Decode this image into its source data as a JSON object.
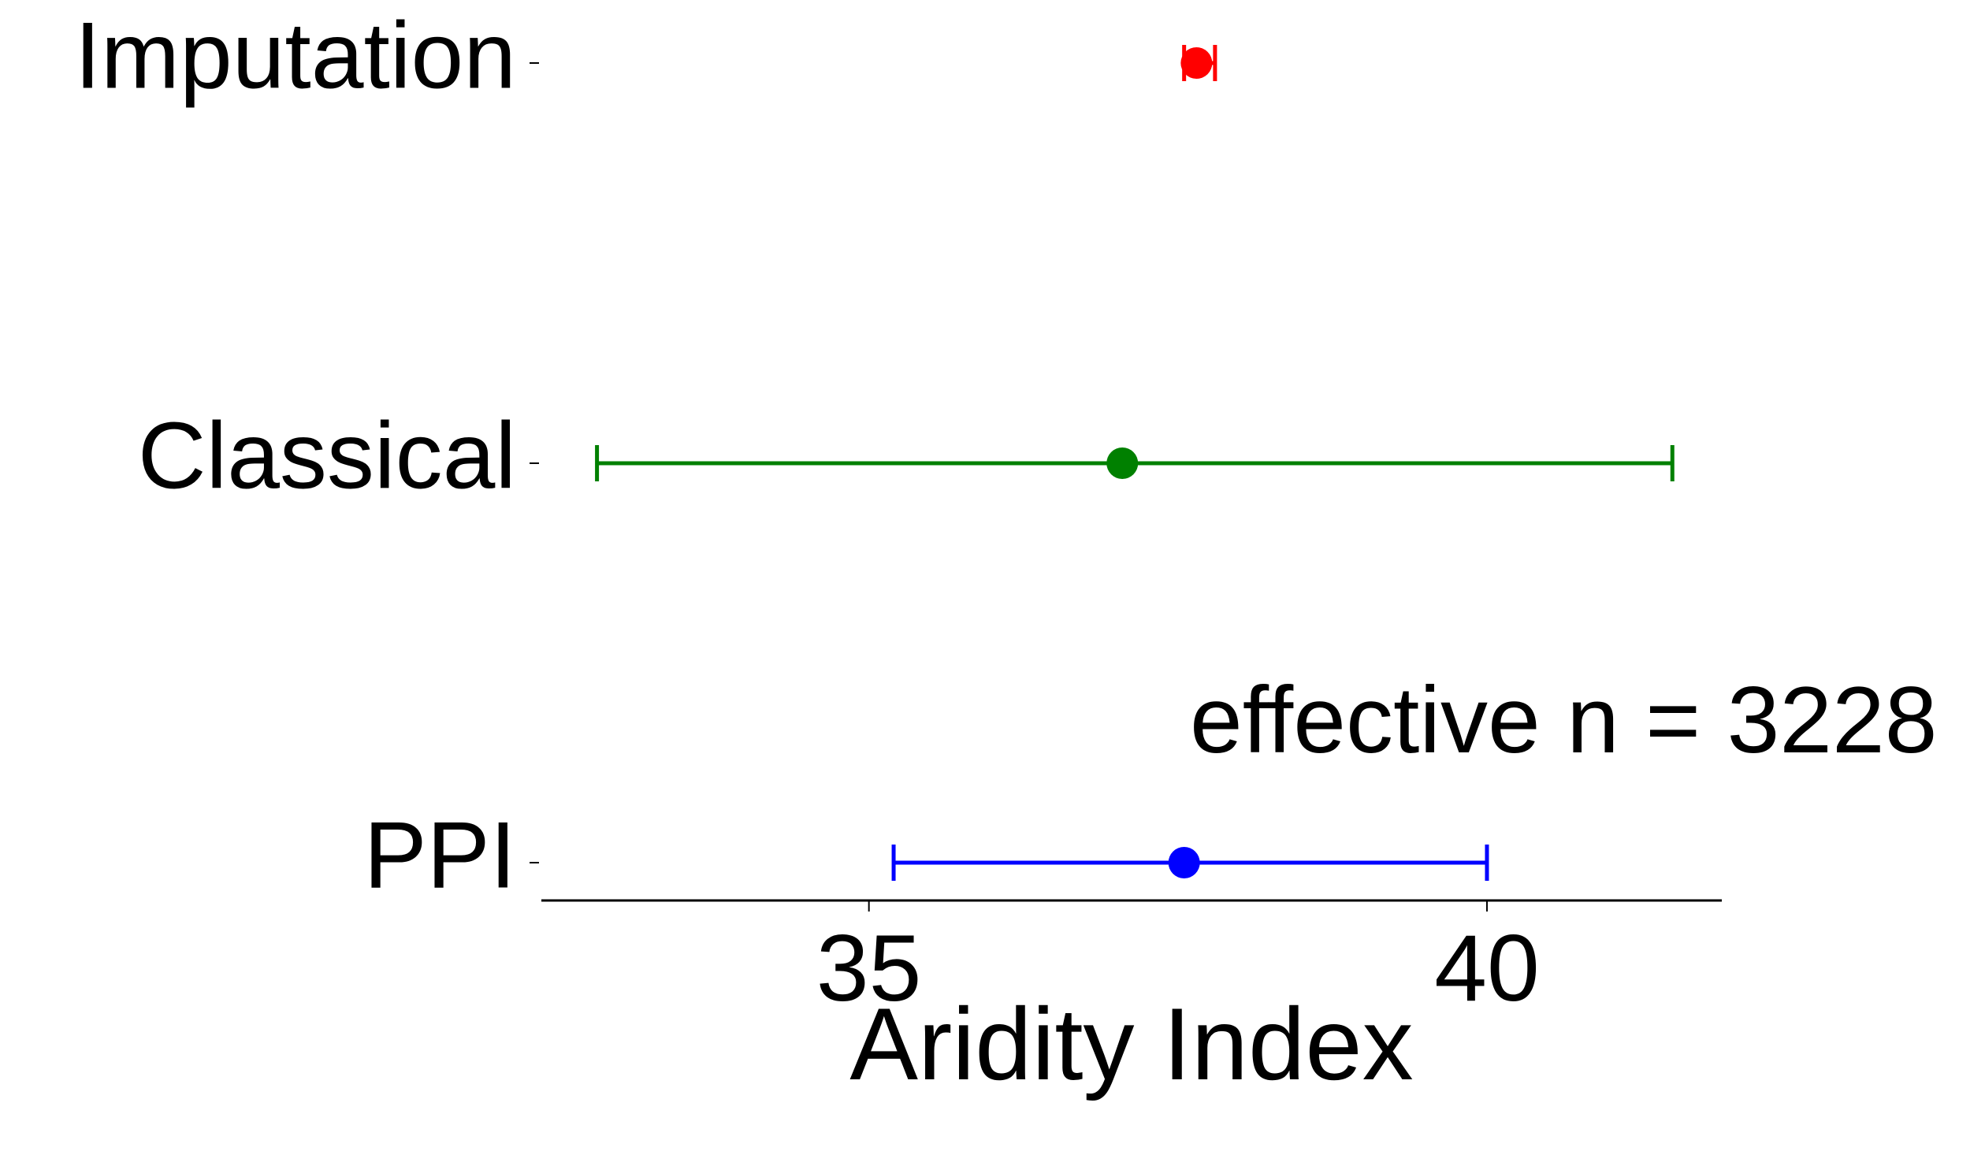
{
  "chart_data": {
    "type": "scatter",
    "subtype": "interval-plot",
    "title": "",
    "xlabel": "Aridity Index",
    "ylabel": "",
    "xlim": [
      32.35,
      41.9
    ],
    "xticks": [
      35,
      40
    ],
    "xtick_labels": [
      "35",
      "40"
    ],
    "categories": [
      "Imputation",
      "Classical",
      "PPI"
    ],
    "series": [
      {
        "name": "Imputation",
        "estimate": 37.65,
        "lower": 37.55,
        "upper": 37.8,
        "color": "#ff0000"
      },
      {
        "name": "Classical",
        "estimate": 37.05,
        "lower": 32.8,
        "upper": 41.5,
        "color": "#008000"
      },
      {
        "name": "PPI",
        "estimate": 37.55,
        "lower": 35.2,
        "upper": 40.0,
        "color": "#0000ff"
      }
    ],
    "annotations": [
      {
        "text": "effective n = 3228",
        "category": "PPI"
      }
    ],
    "grid": false,
    "legend": "none"
  }
}
